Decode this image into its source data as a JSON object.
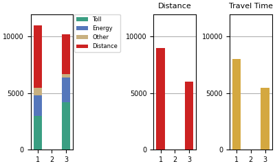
{
  "chart_data": [
    {
      "type": "bar",
      "stacked": true,
      "categories": [
        "1",
        "2",
        "3"
      ],
      "series": [
        {
          "name": "Toll",
          "color": "#3a9e82",
          "values": [
            3000,
            null,
            4200
          ]
        },
        {
          "name": "Energy",
          "color": "#5577bb",
          "values": [
            1800,
            null,
            2200
          ]
        },
        {
          "name": "Other",
          "color": "#c8b080",
          "values": [
            700,
            null,
            300
          ]
        },
        {
          "name": "Distance",
          "color": "#cc2222",
          "values": [
            5500,
            null,
            3500
          ]
        }
      ],
      "ylim": [
        0,
        12000
      ],
      "yticks": [
        0,
        5000,
        10000
      ],
      "grid": true,
      "legend": "upper left"
    },
    {
      "type": "bar",
      "title": "Distance",
      "categories": [
        "1",
        "2",
        "3"
      ],
      "values": [
        9000,
        null,
        6000
      ],
      "color": "#cc2222",
      "ylim": [
        0,
        12000
      ],
      "yticks": [
        0,
        5000,
        10000
      ],
      "grid": true
    },
    {
      "type": "bar",
      "title": "Travel Time",
      "categories": [
        "1",
        "2",
        "3"
      ],
      "values": [
        8000,
        null,
        5500
      ],
      "color": "#d4a840",
      "ylim": [
        0,
        12000
      ],
      "yticks": [
        0,
        5000,
        10000
      ],
      "grid": true
    }
  ]
}
